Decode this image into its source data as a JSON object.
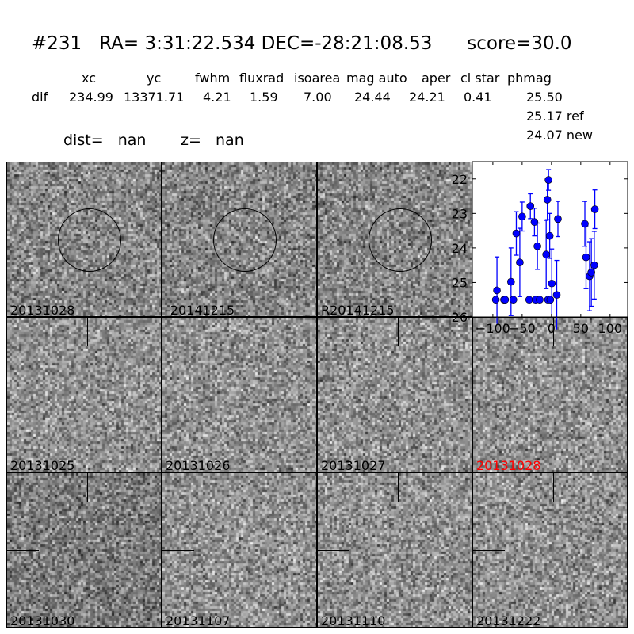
{
  "header": {
    "title": "#231   RA= 3:31:22.534 DEC=-28:21:08.53      score=30.0",
    "columns": [
      "xc",
      "yc",
      "fwhm",
      "fluxrad",
      "isoarea",
      "mag auto",
      "aper",
      "cl star",
      "phmag"
    ],
    "row_label": "dif",
    "values": [
      "234.99",
      "13371.71",
      "4.21",
      "1.59",
      "7.00",
      "24.44",
      "24.21",
      "0.41",
      "25.50"
    ],
    "ref": "25.17 ref",
    "new": "24.07 new",
    "dist": "dist=   nan",
    "z": "z=   nan"
  },
  "panels": [
    {
      "label": "20131028",
      "circle": true
    },
    {
      "label": "-20141215",
      "circle": true
    },
    {
      "label": "R20141215",
      "circle": true
    },
    {
      "label": "20131025",
      "crosshair": true
    },
    {
      "label": "20131026",
      "crosshair": true
    },
    {
      "label": "20131027",
      "crosshair": true
    },
    {
      "label": "20131028",
      "crosshair": true,
      "color": "#ff0000"
    },
    {
      "label": "20131030",
      "crosshair": true
    },
    {
      "label": "20131107",
      "crosshair": true
    },
    {
      "label": "20131110",
      "crosshair": true
    },
    {
      "label": "20131222",
      "crosshair": true
    }
  ],
  "chart_data": {
    "type": "scatter",
    "xlim": [
      -135,
      130
    ],
    "ylim": [
      26,
      21.5
    ],
    "y_inverted": true,
    "xticks": [
      -100,
      -50,
      0,
      50,
      100
    ],
    "xtick_labels": [
      "−100",
      "−50",
      "0",
      "50",
      "100"
    ],
    "yticks": [
      22,
      23,
      24,
      25,
      26
    ],
    "ytick_labels": [
      "22",
      "23",
      "24",
      "25",
      "26"
    ],
    "color": "#0000ff",
    "points": [
      {
        "x": -95,
        "y": 25.5,
        "err": 0.05
      },
      {
        "x": -93,
        "y": 25.23,
        "err": 0.97
      },
      {
        "x": -81,
        "y": 25.5,
        "err": 0.05
      },
      {
        "x": -79,
        "y": 25.5,
        "err": 0.05
      },
      {
        "x": -69,
        "y": 24.98,
        "err": 0.98
      },
      {
        "x": -65,
        "y": 25.5,
        "err": 0.05
      },
      {
        "x": -60,
        "y": 23.58,
        "err": 0.63
      },
      {
        "x": -54,
        "y": 24.42,
        "err": 0.99
      },
      {
        "x": -50,
        "y": 23.09,
        "err": 0.42
      },
      {
        "x": -38,
        "y": 25.5,
        "err": 0.05
      },
      {
        "x": -36,
        "y": 22.79,
        "err": 0.36
      },
      {
        "x": -29,
        "y": 23.25,
        "err": 0.4
      },
      {
        "x": -27,
        "y": 25.5,
        "err": 0.05
      },
      {
        "x": -24,
        "y": 23.95,
        "err": 0.67
      },
      {
        "x": -20,
        "y": 25.5,
        "err": 0.05
      },
      {
        "x": -9,
        "y": 24.19,
        "err": 0.99
      },
      {
        "x": -7,
        "y": 22.6,
        "err": 0.58
      },
      {
        "x": -5,
        "y": 22.03,
        "err": 0.3
      },
      {
        "x": -6,
        "y": 25.5,
        "err": 0.05
      },
      {
        "x": -3,
        "y": 23.65,
        "err": 0.65
      },
      {
        "x": -2,
        "y": 25.5,
        "err": 0.05
      },
      {
        "x": 0.5,
        "y": 25.03,
        "err": 1.0
      },
      {
        "x": 9,
        "y": 25.36,
        "err": 1.0
      },
      {
        "x": 11,
        "y": 23.16,
        "err": 0.51
      },
      {
        "x": 57,
        "y": 23.3,
        "err": 0.65
      },
      {
        "x": 59,
        "y": 24.27,
        "err": 0.91
      },
      {
        "x": 65,
        "y": 24.82,
        "err": 1.0
      },
      {
        "x": 68,
        "y": 24.71,
        "err": 0.98
      },
      {
        "x": 73,
        "y": 24.5,
        "err": 0.98
      },
      {
        "x": 74,
        "y": 22.88,
        "err": 0.56
      }
    ]
  }
}
